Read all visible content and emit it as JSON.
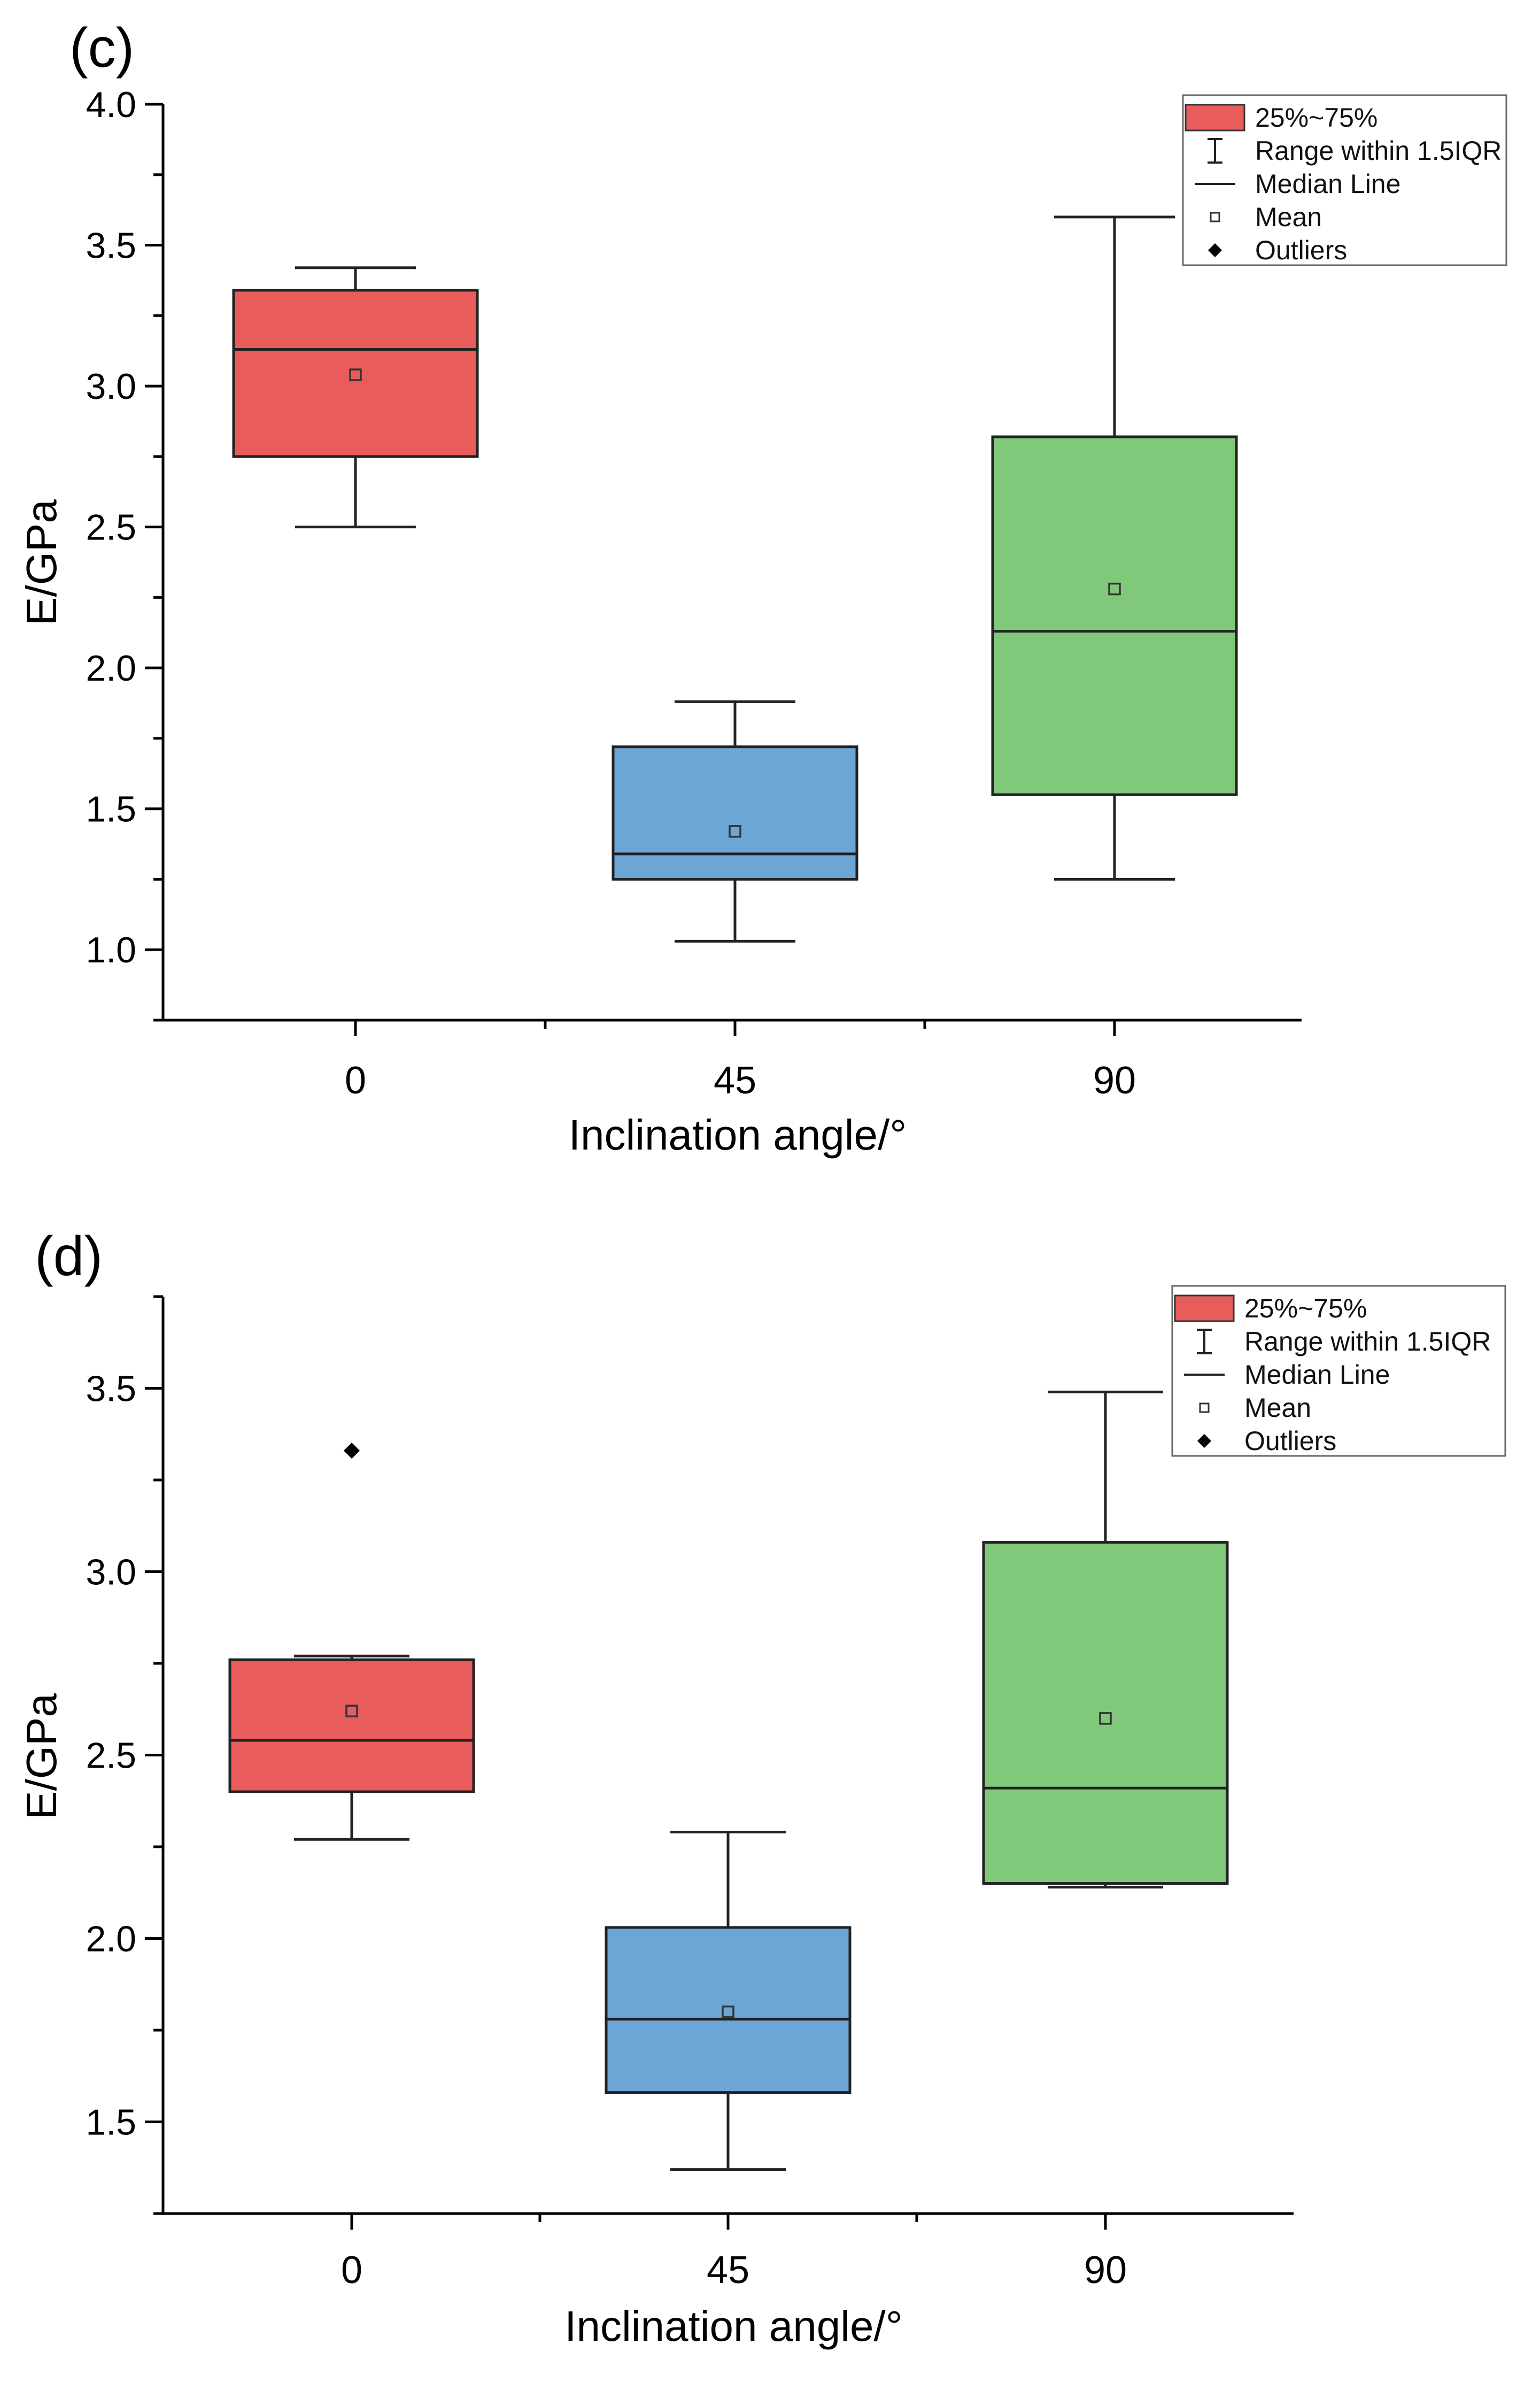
{
  "chart_data": [
    {
      "type": "box",
      "panel_label": "(c)",
      "xlabel": "Inclination angle/°",
      "ylabel": "E/GPa",
      "categories": [
        "0",
        "45",
        "90"
      ],
      "ylim": [
        0.75,
        4.0
      ],
      "yticks": [
        1.0,
        1.5,
        2.0,
        2.5,
        3.0,
        3.5,
        4.0
      ],
      "ytick_labels": [
        "1.0",
        "1.5",
        "2.0",
        "2.5",
        "3.0",
        "3.5",
        "4.0"
      ],
      "colors": [
        "#E95C5C",
        "#6CA6D6",
        "#80C97A"
      ],
      "boxes": [
        {
          "category": "0",
          "whisker_low": 2.5,
          "q1": 2.75,
          "median": 3.13,
          "q3": 3.34,
          "whisker_high": 3.42,
          "mean": 3.04,
          "outliers": []
        },
        {
          "category": "45",
          "whisker_low": 1.03,
          "q1": 1.25,
          "median": 1.34,
          "q3": 1.72,
          "whisker_high": 1.88,
          "mean": 1.42,
          "outliers": []
        },
        {
          "category": "90",
          "whisker_low": 1.25,
          "q1": 1.55,
          "median": 2.13,
          "q3": 2.82,
          "whisker_high": 3.6,
          "mean": 2.28,
          "outliers": []
        }
      ],
      "legend": {
        "position": "top-right",
        "items": [
          {
            "kind": "box",
            "label": "25%~75%",
            "icon": "box-swatch-icon"
          },
          {
            "kind": "range",
            "label": "Range within 1.5IQR",
            "icon": "range-bar-icon"
          },
          {
            "kind": "median",
            "label": "Median Line",
            "icon": "median-line-icon"
          },
          {
            "kind": "mean",
            "label": "Mean",
            "icon": "mean-square-icon"
          },
          {
            "kind": "outlier",
            "label": "Outliers",
            "icon": "outlier-diamond-icon"
          }
        ]
      }
    },
    {
      "type": "box",
      "panel_label": "(d)",
      "xlabel": "Inclination angle/°",
      "ylabel": "E/GPa",
      "categories": [
        "0",
        "45",
        "90"
      ],
      "ylim": [
        1.25,
        3.75
      ],
      "yticks": [
        1.5,
        2.0,
        2.5,
        3.0,
        3.5
      ],
      "ytick_labels": [
        "1.5",
        "2.0",
        "2.5",
        "3.0",
        "3.5"
      ],
      "colors": [
        "#E95C5C",
        "#6CA6D6",
        "#80C97A"
      ],
      "boxes": [
        {
          "category": "0",
          "whisker_low": 2.27,
          "q1": 2.4,
          "median": 2.54,
          "q3": 2.76,
          "whisker_high": 2.77,
          "mean": 2.62,
          "outliers": [
            3.33
          ]
        },
        {
          "category": "45",
          "whisker_low": 1.37,
          "q1": 1.58,
          "median": 1.78,
          "q3": 2.03,
          "whisker_high": 2.29,
          "mean": 1.8,
          "outliers": []
        },
        {
          "category": "90",
          "whisker_low": 2.14,
          "q1": 2.15,
          "median": 2.41,
          "q3": 3.08,
          "whisker_high": 3.49,
          "mean": 2.6,
          "outliers": []
        }
      ],
      "legend": {
        "position": "top-right",
        "items": [
          {
            "kind": "box",
            "label": "25%~75%",
            "icon": "box-swatch-icon"
          },
          {
            "kind": "range",
            "label": "Range within 1.5IQR",
            "icon": "range-bar-icon"
          },
          {
            "kind": "median",
            "label": "Median Line",
            "icon": "median-line-icon"
          },
          {
            "kind": "mean",
            "label": "Mean",
            "icon": "mean-square-icon"
          },
          {
            "kind": "outlier",
            "label": "Outliers",
            "icon": "outlier-diamond-icon"
          }
        ]
      }
    }
  ]
}
